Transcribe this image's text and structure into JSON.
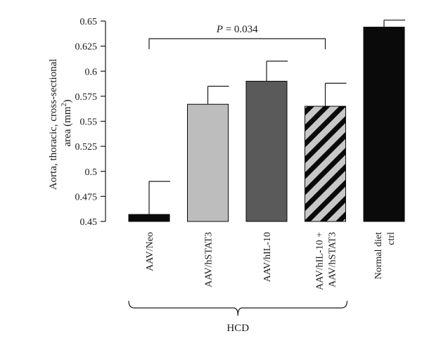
{
  "chart_data": {
    "type": "bar",
    "ylabel_line1": "Aorta, thoracic, cross-sectional",
    "ylabel_line2_prefix": "area (mm",
    "ylabel_line2_sup": "2",
    "ylabel_line2_suffix": ")",
    "ylim": [
      0.45,
      0.65
    ],
    "yticks": [
      "0.65",
      "0.625",
      "0.6",
      "0.575",
      "0.55",
      "0.525",
      "0.5",
      "0.475",
      "0.45"
    ],
    "grid": false,
    "categories": [
      {
        "lines": [
          "AAV/Neo"
        ]
      },
      {
        "lines": [
          "AAV/hSTAT3"
        ]
      },
      {
        "lines": [
          "AAV/hIL-10"
        ]
      },
      {
        "lines": [
          "AAV/hIL-10 +",
          "AAV/hSTAT3"
        ]
      },
      {
        "lines": [
          "Normal diet",
          "ctrl"
        ]
      }
    ],
    "values": [
      0.457,
      0.567,
      0.59,
      0.565,
      0.644
    ],
    "errors": [
      0.033,
      0.018,
      0.02,
      0.023,
      0.007
    ],
    "bar_fills": [
      "#0a0a0a",
      "#bdbdbd",
      "#5a5a5a",
      "hatch",
      "#0a0a0a"
    ],
    "annotation": {
      "italic": "P",
      "text": " = 0.034",
      "from": 0,
      "to": 3
    },
    "group": {
      "label": "HCD",
      "from": 0,
      "to": 3
    }
  }
}
